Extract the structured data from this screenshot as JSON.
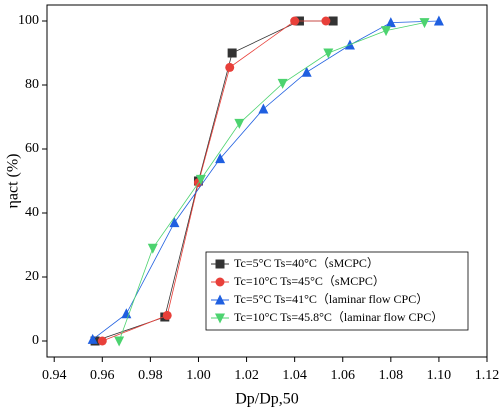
{
  "chart_data": {
    "type": "line",
    "x_label": "Dp/Dp,50",
    "y_label": "ηact (%)",
    "xlim": [
      0.937,
      1.12
    ],
    "xticks": [
      {
        "value": 0.94,
        "label": "0.94"
      },
      {
        "value": 0.96,
        "label": "0.96"
      },
      {
        "value": 0.98,
        "label": "0.98"
      },
      {
        "value": 1.0,
        "label": "1.00"
      },
      {
        "value": 1.02,
        "label": "1.02"
      },
      {
        "value": 1.04,
        "label": "1.04"
      },
      {
        "value": 1.06,
        "label": "1.06"
      },
      {
        "value": 1.08,
        "label": "1.08"
      },
      {
        "value": 1.1,
        "label": "1.10"
      },
      {
        "value": 1.12,
        "label": "1.12"
      }
    ],
    "ylim": [
      -5,
      105
    ],
    "yticks": [
      0,
      20,
      40,
      60,
      80,
      100
    ],
    "legend": "lower right",
    "series": [
      {
        "name": "Tc=5°C Ts=40°C（sMCPC）",
        "color": "#333333",
        "marker": "square",
        "x": [
          0.957,
          0.986,
          1.0,
          1.014,
          1.042,
          1.056
        ],
        "values": [
          0,
          7.5,
          50,
          90,
          100,
          100
        ]
      },
      {
        "name": "Tc=10°C Ts=45°C（sMCPC）",
        "color": "#e8403a",
        "marker": "circle",
        "x": [
          0.96,
          0.987,
          1.0,
          1.013,
          1.04,
          1.053
        ],
        "values": [
          0,
          8,
          49.5,
          85.5,
          100,
          100
        ]
      },
      {
        "name": "Tc=5°C Ts=41°C（laminar flow CPC）",
        "color": "#1f5fe0",
        "marker": "triangle-up",
        "x": [
          0.956,
          0.97,
          0.99,
          1.009,
          1.027,
          1.045,
          1.063,
          1.08,
          1.1
        ],
        "values": [
          0.5,
          8.5,
          37,
          57,
          72.5,
          84,
          92.5,
          99.5,
          100
        ]
      },
      {
        "name": "Tc=10°C Ts=45.8°C（laminar flow CPC）",
        "color": "#4cd36f",
        "marker": "triangle-down",
        "x": [
          0.967,
          0.981,
          1.001,
          1.017,
          1.035,
          1.054,
          1.078,
          1.094
        ],
        "values": [
          0,
          29,
          50.5,
          68,
          80.5,
          90,
          97,
          99.5
        ]
      }
    ]
  }
}
